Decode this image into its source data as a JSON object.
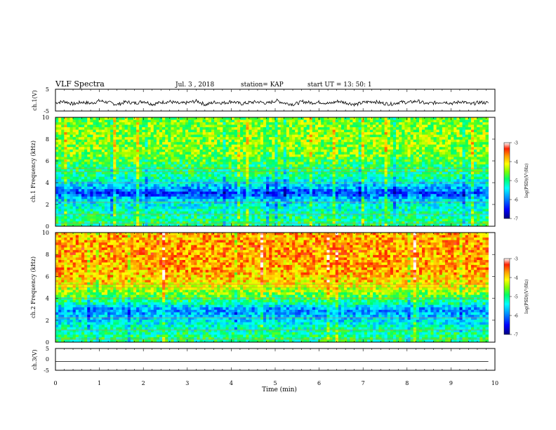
{
  "header": {
    "title": "VLF Spectra",
    "date": "Jul. 3 , 2018",
    "station": "station= KAP",
    "start": "start UT = 13: 50: 1"
  },
  "colors": {
    "trace": "#000000",
    "colormap": [
      "#000080",
      "#0000ff",
      "#0096ff",
      "#00ffff",
      "#00ff66",
      "#80ff00",
      "#ffff00",
      "#ffa000",
      "#ff2000",
      "#ffffff"
    ]
  },
  "chart_data": [
    {
      "type": "line",
      "id": "ch1-waveform",
      "ylabel": "ch.1(V)",
      "ylim": [
        -5,
        5
      ],
      "yticks": [
        "5",
        "-5"
      ],
      "xlim": [
        0,
        10
      ],
      "description_level": "noisy waveform around -1 V",
      "y_values": [
        -1.2,
        -0.6,
        -1.8,
        -0.9,
        -1.5,
        -0.3,
        -1.1,
        -2.0,
        -0.8,
        -1.4,
        -0.5,
        -1.9,
        -1.0,
        -0.7,
        -1.6,
        -1.2,
        -0.4,
        -2.1,
        -0.9,
        -1.3,
        -0.6,
        -1.7,
        -1.1,
        -0.8,
        -1.5,
        -0.2,
        -1.4,
        -1.9,
        -0.7,
        -1.2,
        -0.9,
        -1.6,
        -0.5,
        -1.3,
        -2.0,
        -1.0,
        -0.6,
        -1.4,
        -1.8,
        -0.9,
        -1.1,
        -0.4,
        -1.7,
        -1.2,
        -0.8,
        -1.5,
        -0.6,
        -1.9,
        -1.0,
        -1.3
      ]
    },
    {
      "type": "heatmap",
      "id": "ch1-spectrogram",
      "ylabel": "ch.1 Frequency (kHz)",
      "ylim": [
        0,
        10
      ],
      "yticks": [
        "0",
        "2",
        "4",
        "6",
        "8",
        "10"
      ],
      "xlim": [
        0,
        9.85
      ],
      "colorbar": {
        "label": "log(PSD)(V²/Hz)",
        "range": [
          -7,
          -3
        ],
        "ticks": [
          "-3",
          "-4",
          "-5",
          "-6",
          "-7"
        ]
      },
      "freq_kHz": [
        0.5,
        1.5,
        2.5,
        3.0,
        3.5,
        4.5,
        5.5,
        6.5,
        7.5,
        8.5,
        9.5
      ],
      "mean_log_psd": [
        -5.0,
        -5.2,
        -5.6,
        -6.3,
        -5.8,
        -5.1,
        -4.9,
        -4.6,
        -4.5,
        -4.5,
        -4.6
      ]
    },
    {
      "type": "heatmap",
      "id": "ch2-spectrogram",
      "ylabel": "ch.2 Frequency (kHz)",
      "ylim": [
        0,
        10
      ],
      "yticks": [
        "0",
        "2",
        "4",
        "6",
        "8",
        "10"
      ],
      "xlim": [
        0,
        9.85
      ],
      "colorbar": {
        "label": "log(PSD)(V²/Hz)",
        "range": [
          -7,
          -3
        ],
        "ticks": [
          "-3",
          "-4",
          "-5",
          "-6",
          "-7"
        ]
      },
      "freq_kHz": [
        0.5,
        1.5,
        2.5,
        3.0,
        3.5,
        4.5,
        5.5,
        6.5,
        7.5,
        8.5,
        9.5
      ],
      "mean_log_psd": [
        -5.0,
        -5.3,
        -5.7,
        -5.9,
        -5.2,
        -4.5,
        -4.0,
        -3.8,
        -3.8,
        -3.7,
        -3.8
      ]
    },
    {
      "type": "line",
      "id": "ch3-waveform",
      "ylabel": "ch.3(V)",
      "ylim": [
        -5,
        5
      ],
      "yticks": [
        "5",
        "0",
        "-5"
      ],
      "xlim": [
        0,
        9.85
      ],
      "x": [
        0,
        9.85
      ],
      "y": [
        -1,
        -1
      ]
    }
  ],
  "xaxis": {
    "label": "Time (min)",
    "ticks": [
      "0",
      "1",
      "2",
      "3",
      "4",
      "5",
      "6",
      "7",
      "8",
      "9",
      "10"
    ],
    "range": [
      0,
      10
    ]
  }
}
